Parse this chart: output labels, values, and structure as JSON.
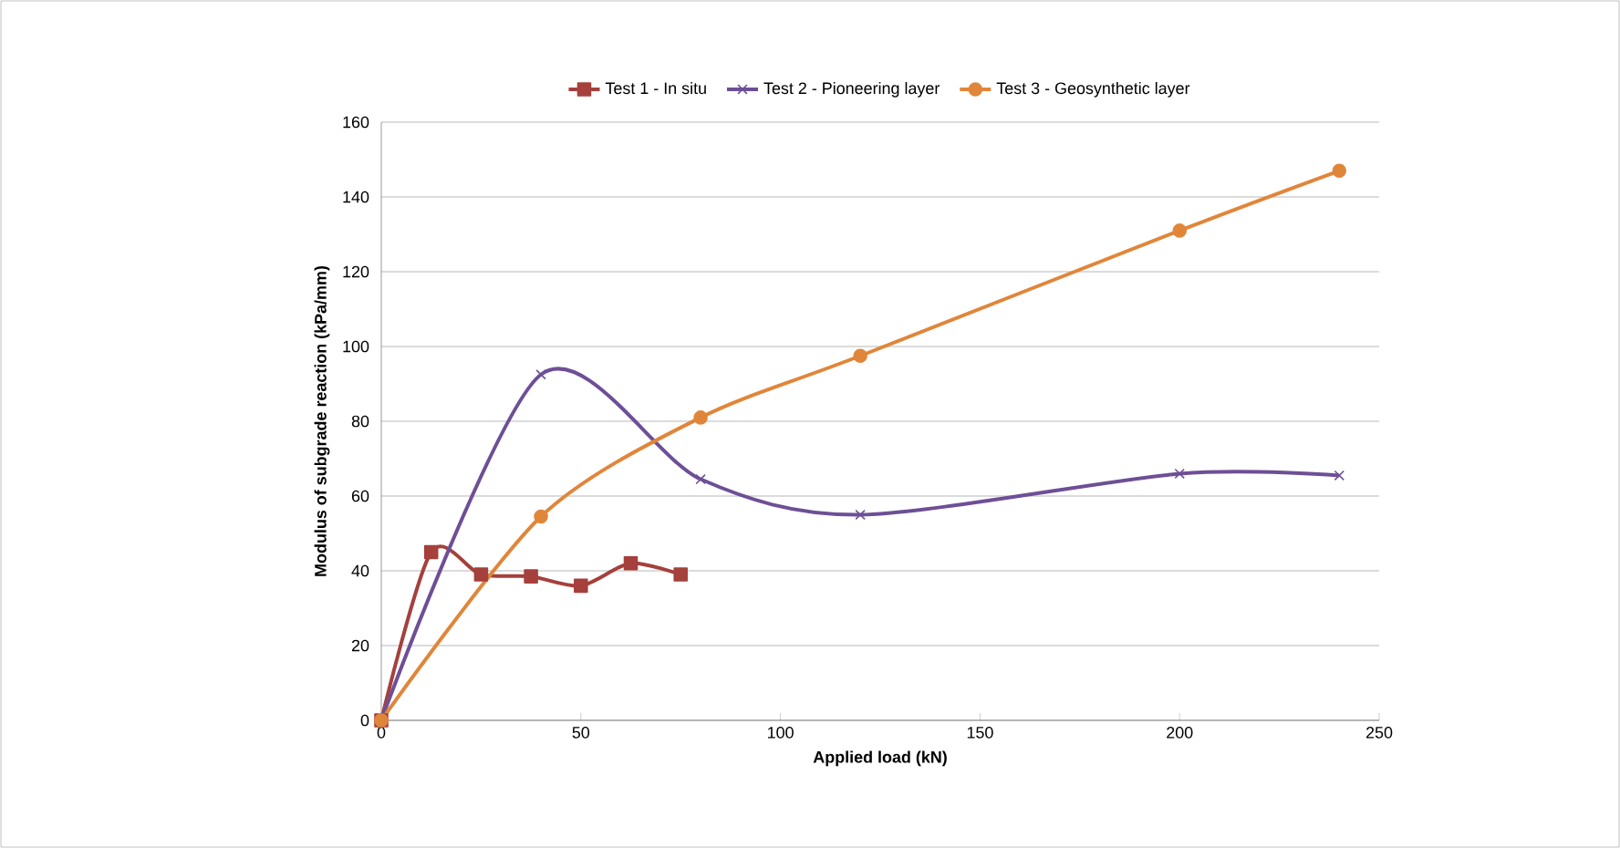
{
  "chart_data": {
    "type": "line",
    "xlabel": "Applied load (kN)",
    "ylabel": "Modulus of subgrade  reaction  (kPa/mm)",
    "xlim": [
      0,
      250
    ],
    "xticks": [
      0,
      50,
      100,
      150,
      200,
      250
    ],
    "ylim": [
      0,
      160
    ],
    "yticks": [
      0,
      20,
      40,
      60,
      80,
      100,
      120,
      140,
      160
    ],
    "grid": "y",
    "legend": "top",
    "series": [
      {
        "name": "Test 1 - In situ",
        "color": "#a5403c",
        "marker": "square",
        "x": [
          0,
          12.5,
          25,
          37.5,
          50,
          62.5,
          75
        ],
        "values": [
          0,
          45,
          39,
          38.5,
          36,
          42,
          39
        ]
      },
      {
        "name": "Test 2 - Pioneering layer",
        "color": "#6e4f96",
        "marker": "cross",
        "x": [
          0,
          40,
          80,
          120,
          200,
          240
        ],
        "values": [
          0,
          92.5,
          64.5,
          55,
          66,
          65.5
        ]
      },
      {
        "name": "Test 3 - Geosynthetic layer",
        "color": "#e0863a",
        "marker": "circle",
        "x": [
          0,
          40,
          80,
          120,
          200,
          240
        ],
        "values": [
          0,
          54.5,
          81,
          97.5,
          131,
          147
        ]
      }
    ]
  }
}
